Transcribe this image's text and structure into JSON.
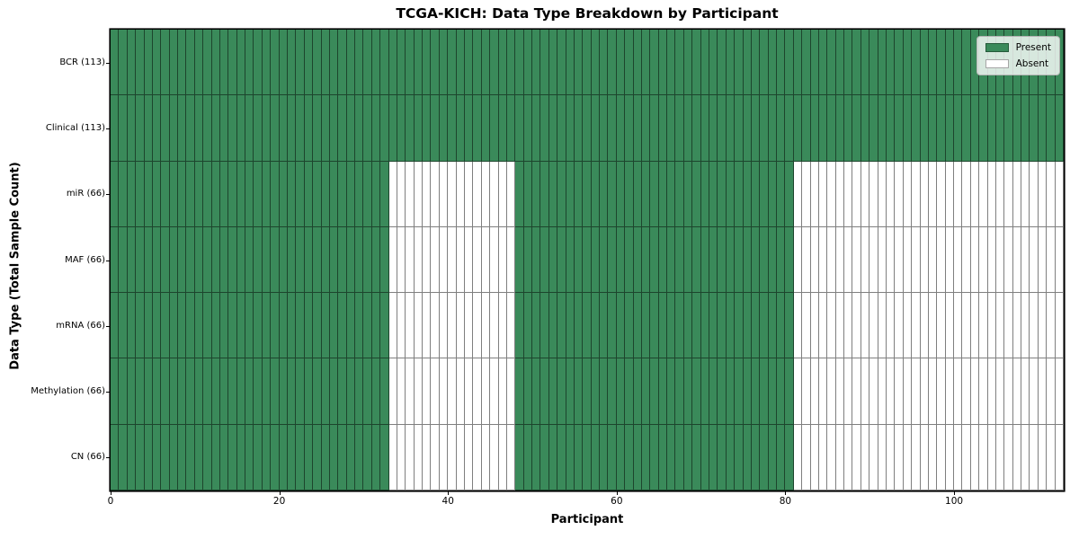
{
  "chart_data": {
    "type": "heatmap",
    "title": "TCGA-KICH: Data Type Breakdown by Participant",
    "xlabel": "Participant",
    "ylabel": "Data Type (Total Sample Count)",
    "x_range": [
      0,
      113
    ],
    "x_ticks": [
      0,
      20,
      40,
      60,
      80,
      100
    ],
    "participants_total": 113,
    "grid": true,
    "legend": {
      "position": "upper-right",
      "entries": [
        {
          "label": "Present",
          "color": "#3a8a5a"
        },
        {
          "label": "Absent",
          "color": "#ffffff"
        }
      ]
    },
    "colors": {
      "present": "#3a8a5a",
      "absent": "#ffffff",
      "gridline": "rgba(0,0,0,0.5)",
      "spine": "#000000"
    },
    "rows": [
      {
        "label": "BCR (113)",
        "total_sample_count": 113,
        "present_ranges": [
          [
            0,
            113
          ]
        ]
      },
      {
        "label": "Clinical (113)",
        "total_sample_count": 113,
        "present_ranges": [
          [
            0,
            113
          ]
        ]
      },
      {
        "label": "miR (66)",
        "total_sample_count": 66,
        "present_ranges": [
          [
            0,
            33
          ],
          [
            48,
            81
          ]
        ]
      },
      {
        "label": "MAF (66)",
        "total_sample_count": 66,
        "present_ranges": [
          [
            0,
            33
          ],
          [
            48,
            81
          ]
        ]
      },
      {
        "label": "mRNA (66)",
        "total_sample_count": 66,
        "present_ranges": [
          [
            0,
            33
          ],
          [
            48,
            81
          ]
        ]
      },
      {
        "label": "Methylation (66)",
        "total_sample_count": 66,
        "present_ranges": [
          [
            0,
            33
          ],
          [
            48,
            81
          ]
        ]
      },
      {
        "label": "CN (66)",
        "total_sample_count": 66,
        "present_ranges": [
          [
            0,
            33
          ],
          [
            48,
            81
          ]
        ]
      }
    ]
  }
}
